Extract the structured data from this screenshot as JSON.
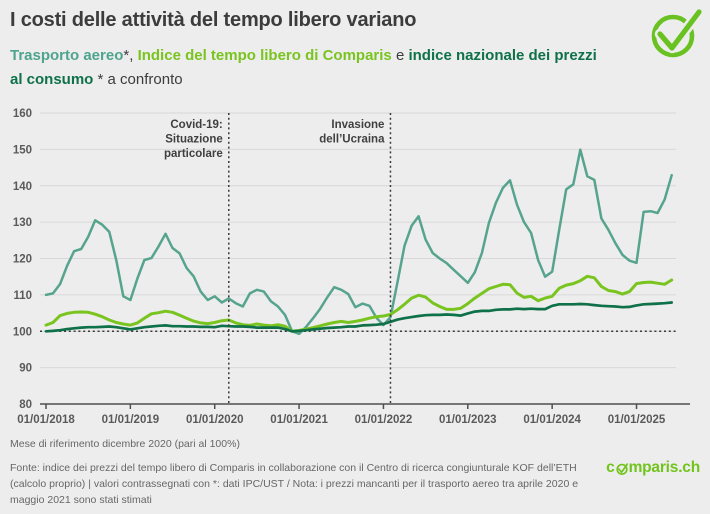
{
  "header": {
    "title": "I costi delle attività del tempo libero variano",
    "subtitle_parts": [
      {
        "text": "Trasporto aereo",
        "color": "#4fa48c",
        "bold": true
      },
      {
        "text": "*, ",
        "color": "#3c3c3c",
        "bold": false
      },
      {
        "text": "Indice del tempo libero di Comparis",
        "color": "#7ac41f",
        "bold": true
      },
      {
        "text": " e ",
        "color": "#3c3c3c",
        "bold": false
      },
      {
        "text": "indice nazionale dei prezzi al consumo",
        "color": "#0f7149",
        "bold": true
      },
      {
        "text": " * a confronto",
        "color": "#3c3c3c",
        "bold": false
      }
    ]
  },
  "chart_data": {
    "type": "line",
    "title": "I costi delle attività del tempo libero variano",
    "x_unit": "month",
    "x_start": "01/2018",
    "x_end": "06/2025",
    "x_tick_labels": [
      "01/01/2018",
      "01/01/2019",
      "01/01/2020",
      "01/01/2021",
      "01/01/2022",
      "01/01/2023",
      "01/01/2024",
      "01/01/2025"
    ],
    "ylim": [
      80,
      160
    ],
    "ytick_step": 10,
    "grid": true,
    "legend_position": "in-subtitle",
    "reference_line": 100,
    "annotations": [
      {
        "label_lines": [
          "Covid-19:",
          "Situazione",
          "particolare"
        ],
        "month_index": 26,
        "label_y": 128
      },
      {
        "label_lines": [
          "Invasione",
          "dell’Ucraina"
        ],
        "month_index": 49,
        "label_y": 128
      }
    ],
    "series": [
      {
        "name": "Trasporto aereo",
        "color": "#56a48e",
        "width": 2.5,
        "values": [
          110,
          110.4,
          113,
          118,
          122,
          122.6,
          126,
          130.5,
          129.3,
          127.3,
          119.5,
          109.6,
          108.6,
          114.5,
          119.6,
          120.1,
          123.3,
          126.8,
          122.9,
          121.4,
          117.4,
          115.1,
          110.9,
          108.6,
          109.6,
          107.9,
          109,
          107.7,
          106.8,
          110.4,
          111.4,
          110.9,
          108.2,
          106.8,
          104.5,
          100,
          99.3,
          101.2,
          103.6,
          106.2,
          109.3,
          112.1,
          111.4,
          110.2,
          106.6,
          107.6,
          107,
          103.7,
          101.7,
          103.9,
          113.5,
          123.5,
          129,
          131.6,
          125.2,
          121.5,
          120,
          118.7,
          116.9,
          115.1,
          113.3,
          116.2,
          121.5,
          129.8,
          135.3,
          139.4,
          141.5,
          134.8,
          130,
          127,
          119.6,
          115,
          116.4,
          127.9,
          139,
          140.4,
          149.9,
          142.6,
          141.6,
          131,
          127.9,
          124.2,
          121,
          119.4,
          118.8,
          132.8,
          133,
          132.5,
          136.2,
          142.9
        ]
      },
      {
        "name": "Indice del tempo libero di Comparis",
        "color": "#7ac41f",
        "width": 3,
        "values": [
          101.7,
          102.4,
          104.3,
          104.9,
          105.2,
          105.3,
          105.2,
          104.7,
          104,
          103.1,
          102.4,
          102,
          101.7,
          102.3,
          103.6,
          104.8,
          105.1,
          105.5,
          105.2,
          104.4,
          103.6,
          102.8,
          102.3,
          102.1,
          102.4,
          102.9,
          103.1,
          102.3,
          101.8,
          101.6,
          102,
          101.7,
          101.5,
          101.8,
          101.4,
          100,
          100.2,
          100.6,
          101,
          101.5,
          102,
          102.4,
          102.7,
          102.4,
          102.7,
          103.1,
          103.6,
          104,
          104.2,
          104.6,
          105.9,
          107.4,
          109.1,
          109.9,
          109.4,
          107.8,
          106.8,
          106,
          106,
          106.3,
          107.6,
          109.1,
          110.4,
          111.7,
          112.3,
          112.9,
          112.8,
          110.5,
          109.3,
          109.6,
          108.4,
          109.1,
          109.6,
          111.8,
          112.7,
          113.1,
          113.9,
          115.1,
          114.7,
          112.3,
          111.2,
          110.9,
          110.2,
          110.9,
          113.1,
          113.4,
          113.5,
          113.2,
          112.9,
          114.1
        ]
      },
      {
        "name": "Indice nazionale dei prezzi al consumo",
        "color": "#0f7149",
        "width": 2.7,
        "values": [
          100,
          100.1,
          100.3,
          100.6,
          100.8,
          101,
          101.1,
          101.1,
          101.2,
          101.3,
          101.1,
          100.8,
          100.5,
          100.8,
          101.1,
          101.3,
          101.5,
          101.6,
          101.4,
          101.4,
          101.3,
          101.3,
          101.2,
          101.2,
          101.1,
          101.5,
          101.4,
          101.3,
          101.3,
          101.2,
          101,
          101,
          101,
          101,
          100.6,
          100,
          100.1,
          100.3,
          100.5,
          100.7,
          100.9,
          101,
          101.1,
          101.3,
          101.3,
          101.6,
          101.7,
          101.8,
          102,
          102.6,
          103.2,
          103.6,
          103.9,
          104.2,
          104.4,
          104.5,
          104.5,
          104.6,
          104.5,
          104.3,
          104.9,
          105.4,
          105.6,
          105.6,
          105.9,
          106,
          106,
          106.2,
          106.1,
          106.2,
          106.1,
          106.1,
          107,
          107.4,
          107.4,
          107.4,
          107.5,
          107.4,
          107.2,
          107,
          106.9,
          106.8,
          106.6,
          106.7,
          107.1,
          107.4,
          107.5,
          107.6,
          107.7,
          107.9
        ]
      }
    ]
  },
  "footer": {
    "reference_note": "Mese di riferimento dicembre 2020 (pari al 100%)",
    "source_note": "Fonte: indice dei prezzi del tempo libero di Comparis in collaborazione con il Centro di ricerca congiunturale KOF dell’ETH (calcolo proprio) | valori contrassegnati con *: dati IPC/UST / Nota: i prezzi mancanti per il trasporto aereo tra aprile 2020 e maggio 2021 sono stati stimati"
  },
  "branding": {
    "logo_text": "comparis.ch",
    "logo_prefix": "c",
    "logo_suffix": "mparis.ch",
    "logo_color": "#72c41c",
    "check_color": "#69c221"
  }
}
